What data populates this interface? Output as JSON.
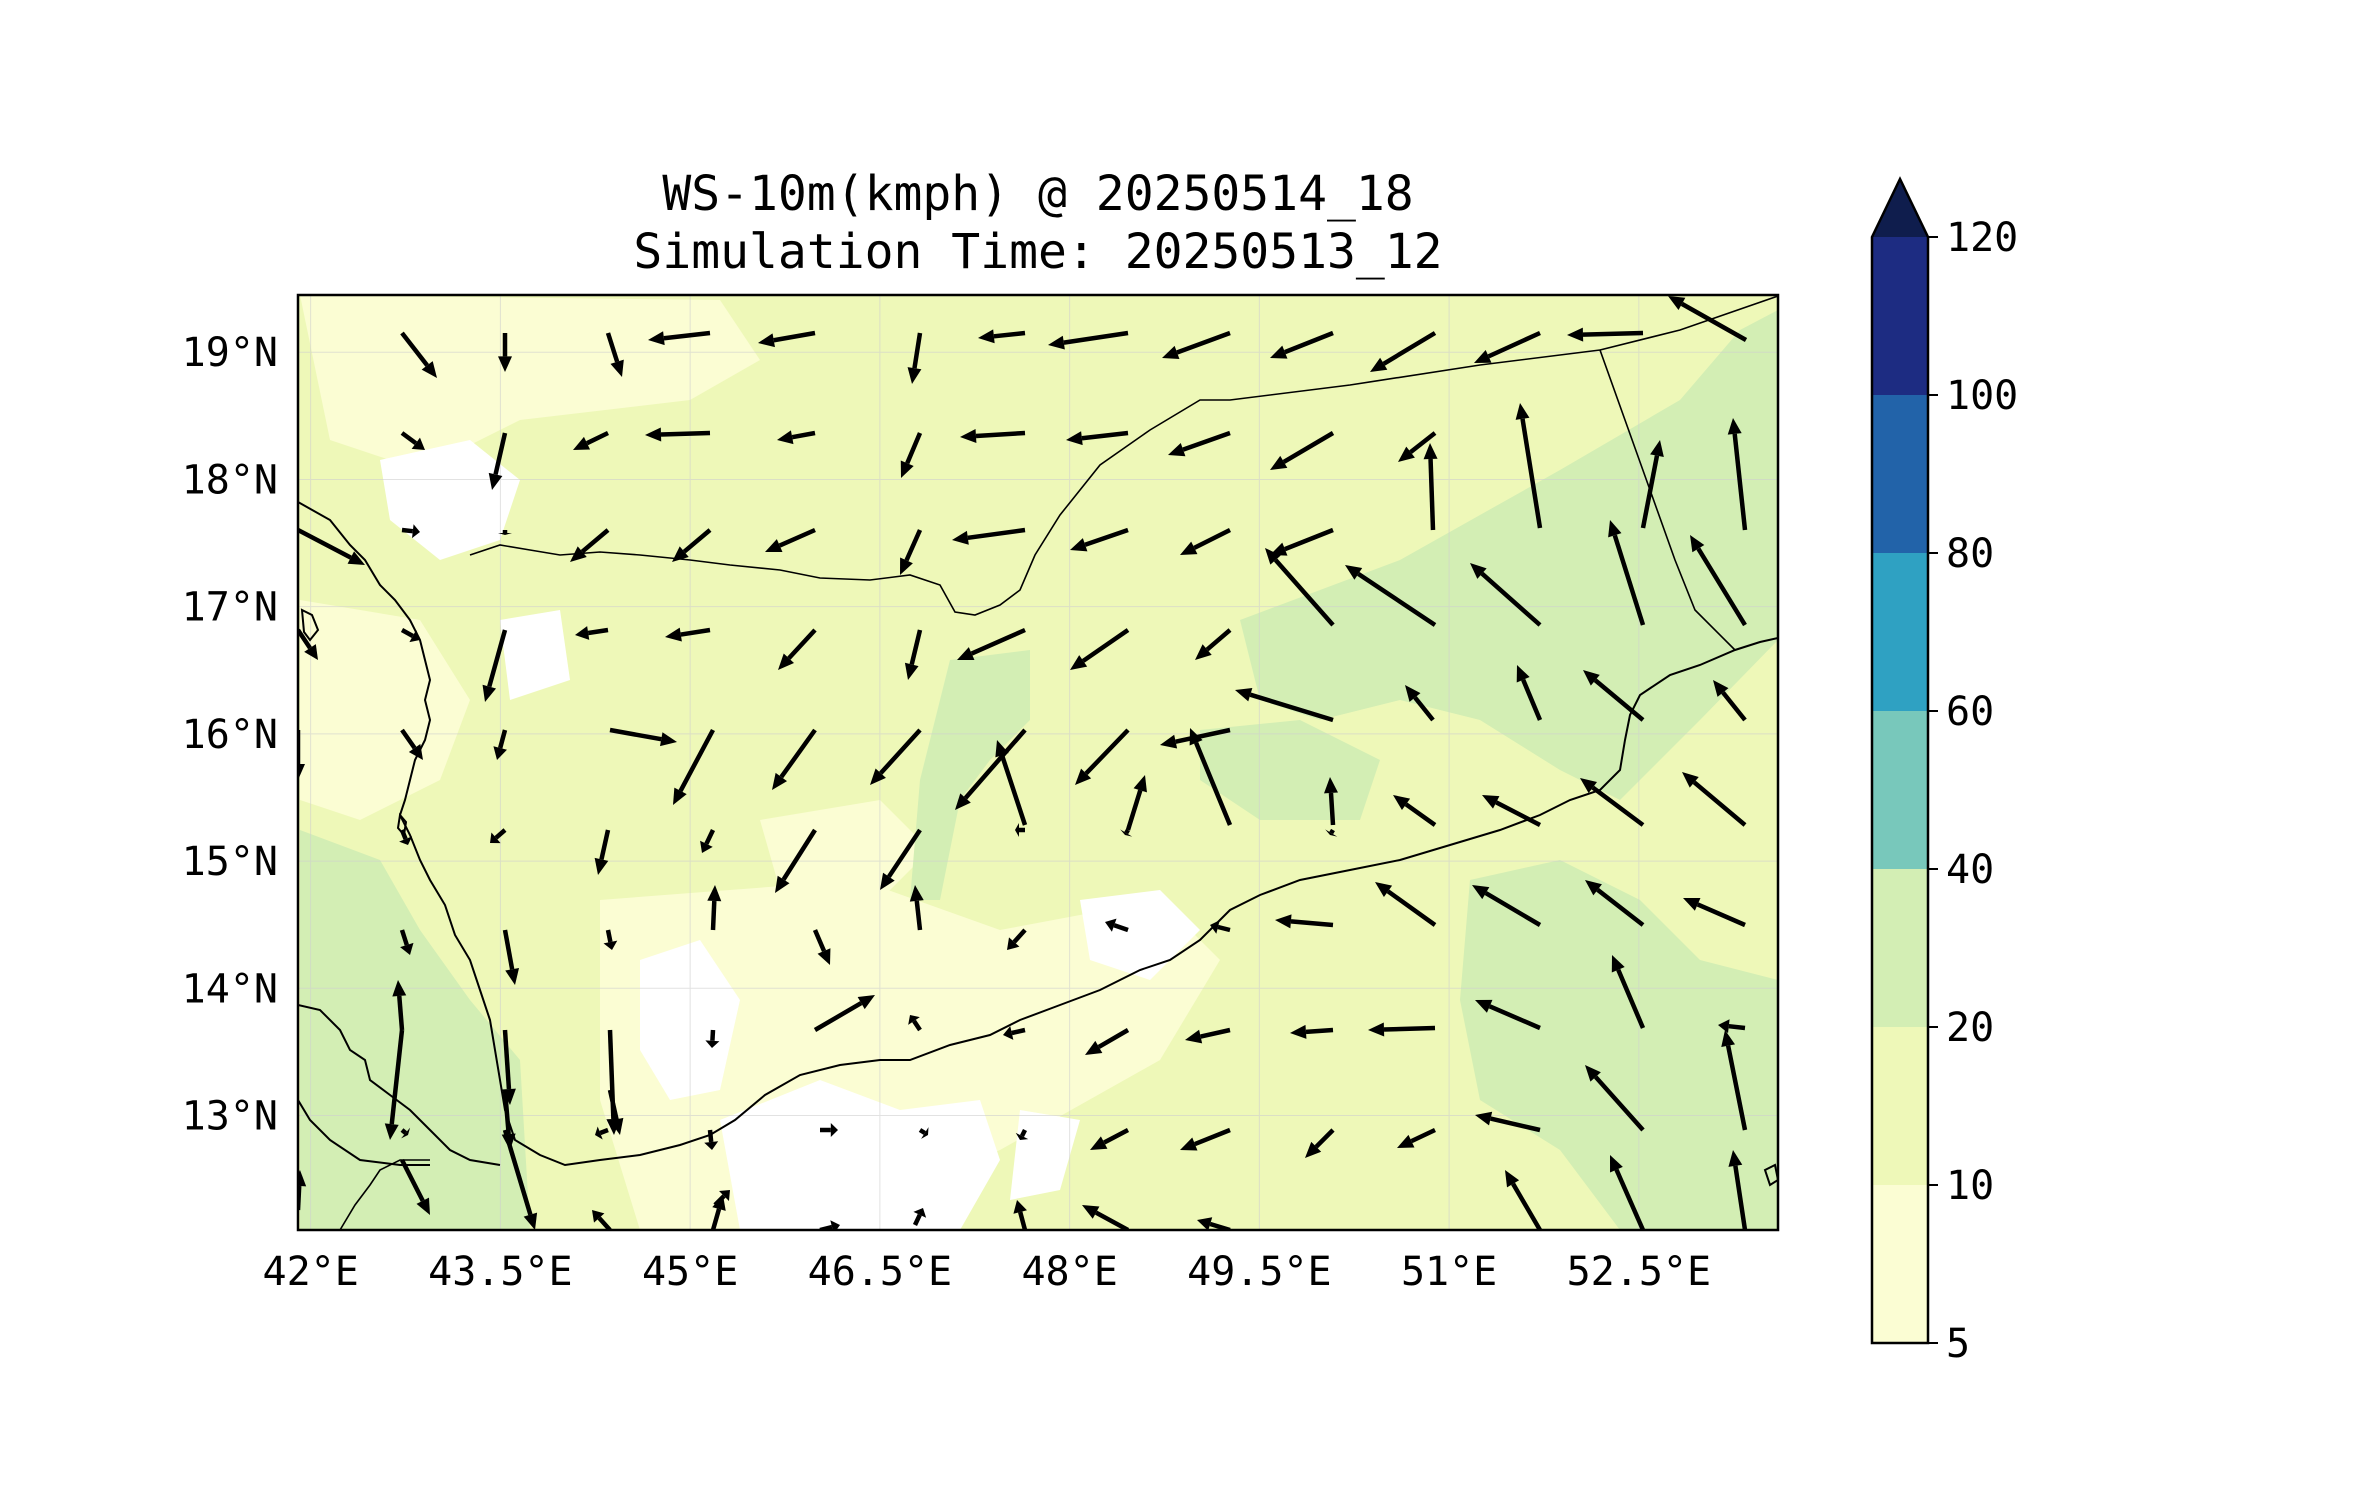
{
  "title": {
    "line1": "WS-10m(kmph) @ 20250514_18",
    "line2": "Simulation Time: 20250513_12"
  },
  "map": {
    "variable": "WS-10m(kmph)",
    "lon_range": [
      41.9,
      53.6
    ],
    "lat_range": [
      12.1,
      19.45
    ],
    "lon_ticks": [
      {
        "value": 42.0,
        "label": "42°E"
      },
      {
        "value": 43.5,
        "label": "43.5°E"
      },
      {
        "value": 45.0,
        "label": "45°E"
      },
      {
        "value": 46.5,
        "label": "46.5°E"
      },
      {
        "value": 48.0,
        "label": "48°E"
      },
      {
        "value": 49.5,
        "label": "49.5°E"
      },
      {
        "value": 51.0,
        "label": "51°E"
      },
      {
        "value": 52.5,
        "label": "52.5°E"
      }
    ],
    "lat_ticks": [
      {
        "value": 19,
        "label": "19°N"
      },
      {
        "value": 18,
        "label": "18°N"
      },
      {
        "value": 17,
        "label": "17°N"
      },
      {
        "value": 16,
        "label": "16°N"
      },
      {
        "value": 15,
        "label": "15°N"
      },
      {
        "value": 14,
        "label": "14°N"
      },
      {
        "value": 13,
        "label": "13°N"
      }
    ],
    "gridlines": true
  },
  "colorbar": {
    "levels": [
      5,
      10,
      20,
      40,
      60,
      80,
      100,
      120
    ],
    "labels": [
      "5",
      "10",
      "20",
      "40",
      "60",
      "80",
      "100",
      "120"
    ],
    "colors": [
      "#fbfdd3",
      "#eef8b8",
      "#d3eeb4",
      "#78c8bb",
      "#2fa1c2",
      "#2263a9",
      "#1d2c82"
    ],
    "extend_color": "#0f1d4d",
    "extend": "max"
  },
  "colors": {
    "land_base": "#eef8b8",
    "calm": "#ffffff",
    "light": "#fbfdd3",
    "moderate": "#d3eeb4",
    "arrow": "#000000"
  }
}
